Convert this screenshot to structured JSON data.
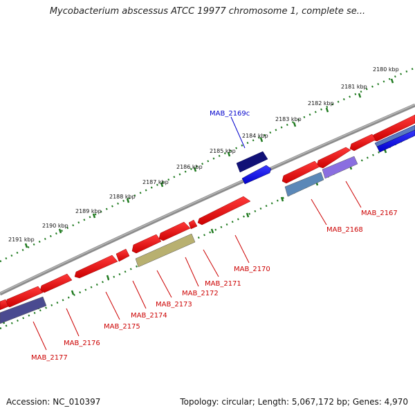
{
  "title": "Mycobacterium abscessus ATCC 19977 chromosome 1, complete se...",
  "accession": "Accession: NC_010397",
  "summary": "Topology: circular; Length: 5,067,172 bp; Genes: 4,970",
  "colors": {
    "backbone": "#8c8c8c",
    "tick": "#1f7a1f",
    "gene_forward": "#ee0000",
    "gene_reverse": "#0000ee",
    "label_red": "#cc0000",
    "label_blue": "#0000cc"
  },
  "scale_labels": [
    "2180 kbp",
    "2181 kbp",
    "2182 kbp",
    "2183 kbp",
    "2184 kbp",
    "2185 kbp",
    "2186 kbp",
    "2187 kbp",
    "2188 kbp",
    "2189 kbp",
    "2190 kbp",
    "2191 kbp"
  ],
  "gene_labels": [
    {
      "name": "MAB_2169c",
      "color": "blue"
    },
    {
      "name": "MAB_2167",
      "color": "red"
    },
    {
      "name": "MAB_2168",
      "color": "red"
    },
    {
      "name": "MAB_2170",
      "color": "red"
    },
    {
      "name": "MAB_2171",
      "color": "red"
    },
    {
      "name": "MAB_2172",
      "color": "red"
    },
    {
      "name": "MAB_2173",
      "color": "red"
    },
    {
      "name": "MAB_2174",
      "color": "red"
    },
    {
      "name": "MAB_2175",
      "color": "red"
    },
    {
      "name": "MAB_2176",
      "color": "red"
    },
    {
      "name": "MAB_2177",
      "color": "red"
    }
  ]
}
